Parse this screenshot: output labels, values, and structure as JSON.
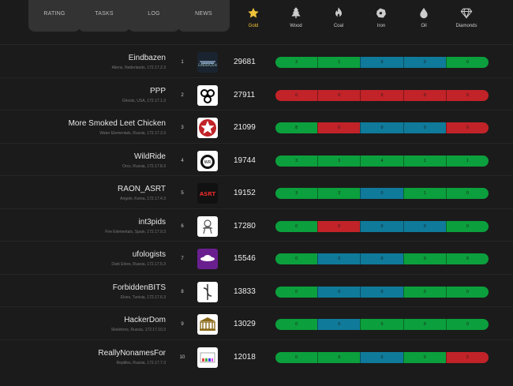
{
  "tabs": [
    {
      "label": "RATING"
    },
    {
      "label": "TASKS"
    },
    {
      "label": "LOG"
    },
    {
      "label": "NEWS"
    }
  ],
  "resources": [
    {
      "label": "Gold",
      "icon": "star-icon"
    },
    {
      "label": "Wood",
      "icon": "tree-icon"
    },
    {
      "label": "Coal",
      "icon": "flame-icon"
    },
    {
      "label": "Iron",
      "icon": "ore-icon"
    },
    {
      "label": "Oil",
      "icon": "drop-icon"
    },
    {
      "label": "Diamonds",
      "icon": "diamond-icon"
    }
  ],
  "colors": {
    "green": "#0c9f3d",
    "red": "#c12328",
    "blue": "#0f7a9a",
    "gold": "#f0c23a"
  },
  "teams": [
    {
      "name": "Eindbazen",
      "meta": "Aliens, Nederlands, 172.17.2.3",
      "rank": "1",
      "score": "29681",
      "bar": [
        {
          "v": "3",
          "c": "green"
        },
        {
          "v": "1",
          "c": "green"
        },
        {
          "v": "0",
          "c": "blue"
        },
        {
          "v": "0",
          "c": "blue"
        },
        {
          "v": "0",
          "c": "green"
        }
      ]
    },
    {
      "name": "PPP",
      "meta": "Ghosts, USA, 172.17.1.3",
      "rank": "2",
      "score": "27911",
      "bar": [
        {
          "v": "0",
          "c": "red"
        },
        {
          "v": "0",
          "c": "red"
        },
        {
          "v": "0",
          "c": "red"
        },
        {
          "v": "0",
          "c": "red"
        },
        {
          "v": "0",
          "c": "red"
        }
      ]
    },
    {
      "name": "More Smoked Leet Chicken",
      "meta": "Water Elementals, Russia, 172.17.3.3",
      "rank": "3",
      "score": "21099",
      "bar": [
        {
          "v": "8",
          "c": "green"
        },
        {
          "v": "0",
          "c": "red"
        },
        {
          "v": "0",
          "c": "blue"
        },
        {
          "v": "0",
          "c": "blue"
        },
        {
          "v": "0",
          "c": "red"
        }
      ]
    },
    {
      "name": "WildRide",
      "meta": "Orcs, Russia, 172.17.8.3",
      "rank": "4",
      "score": "19744",
      "bar": [
        {
          "v": "3",
          "c": "green"
        },
        {
          "v": "3",
          "c": "green"
        },
        {
          "v": "4",
          "c": "green"
        },
        {
          "v": "1",
          "c": "green"
        },
        {
          "v": "1",
          "c": "green"
        }
      ]
    },
    {
      "name": "RAON_ASRT",
      "meta": "Angels, Korea, 172.17.4.3",
      "rank": "5",
      "score": "19152",
      "bar": [
        {
          "v": "3",
          "c": "green"
        },
        {
          "v": "2",
          "c": "green"
        },
        {
          "v": "0",
          "c": "blue"
        },
        {
          "v": "1",
          "c": "green"
        },
        {
          "v": "0",
          "c": "green"
        }
      ]
    },
    {
      "name": "int3pids",
      "meta": "Fire Elementals, Spain, 172.17.9.3",
      "rank": "6",
      "score": "17280",
      "bar": [
        {
          "v": "0",
          "c": "green"
        },
        {
          "v": "0",
          "c": "red"
        },
        {
          "v": "0",
          "c": "blue"
        },
        {
          "v": "0",
          "c": "blue"
        },
        {
          "v": "0",
          "c": "green"
        }
      ]
    },
    {
      "name": "ufologists",
      "meta": "Dark Elves, Russia, 172.17.5.3",
      "rank": "7",
      "score": "15546",
      "bar": [
        {
          "v": "0",
          "c": "green"
        },
        {
          "v": "0",
          "c": "blue"
        },
        {
          "v": "0",
          "c": "blue"
        },
        {
          "v": "0",
          "c": "green"
        },
        {
          "v": "0",
          "c": "green"
        }
      ]
    },
    {
      "name": "ForbiddenBITS",
      "meta": "Elves, Tunisia, 172.17.6.3",
      "rank": "8",
      "score": "13833",
      "bar": [
        {
          "v": "0",
          "c": "green"
        },
        {
          "v": "0",
          "c": "blue"
        },
        {
          "v": "0",
          "c": "blue"
        },
        {
          "v": "0",
          "c": "green"
        },
        {
          "v": "0",
          "c": "green"
        }
      ]
    },
    {
      "name": "HackerDom",
      "meta": "Skeletons, Russia, 172.17.10.3",
      "rank": "9",
      "score": "13029",
      "bar": [
        {
          "v": "0",
          "c": "green"
        },
        {
          "v": "0",
          "c": "blue"
        },
        {
          "v": "0",
          "c": "green"
        },
        {
          "v": "0",
          "c": "green"
        },
        {
          "v": "0",
          "c": "green"
        }
      ]
    },
    {
      "name": "ReallyNonamesFor",
      "meta": "Reptiles, Russia, 172.17.7.3",
      "rank": "10",
      "score": "12018",
      "bar": [
        {
          "v": "0",
          "c": "green"
        },
        {
          "v": "0",
          "c": "green"
        },
        {
          "v": "0",
          "c": "blue"
        },
        {
          "v": "0",
          "c": "green"
        },
        {
          "v": "0",
          "c": "red"
        }
      ]
    }
  ]
}
